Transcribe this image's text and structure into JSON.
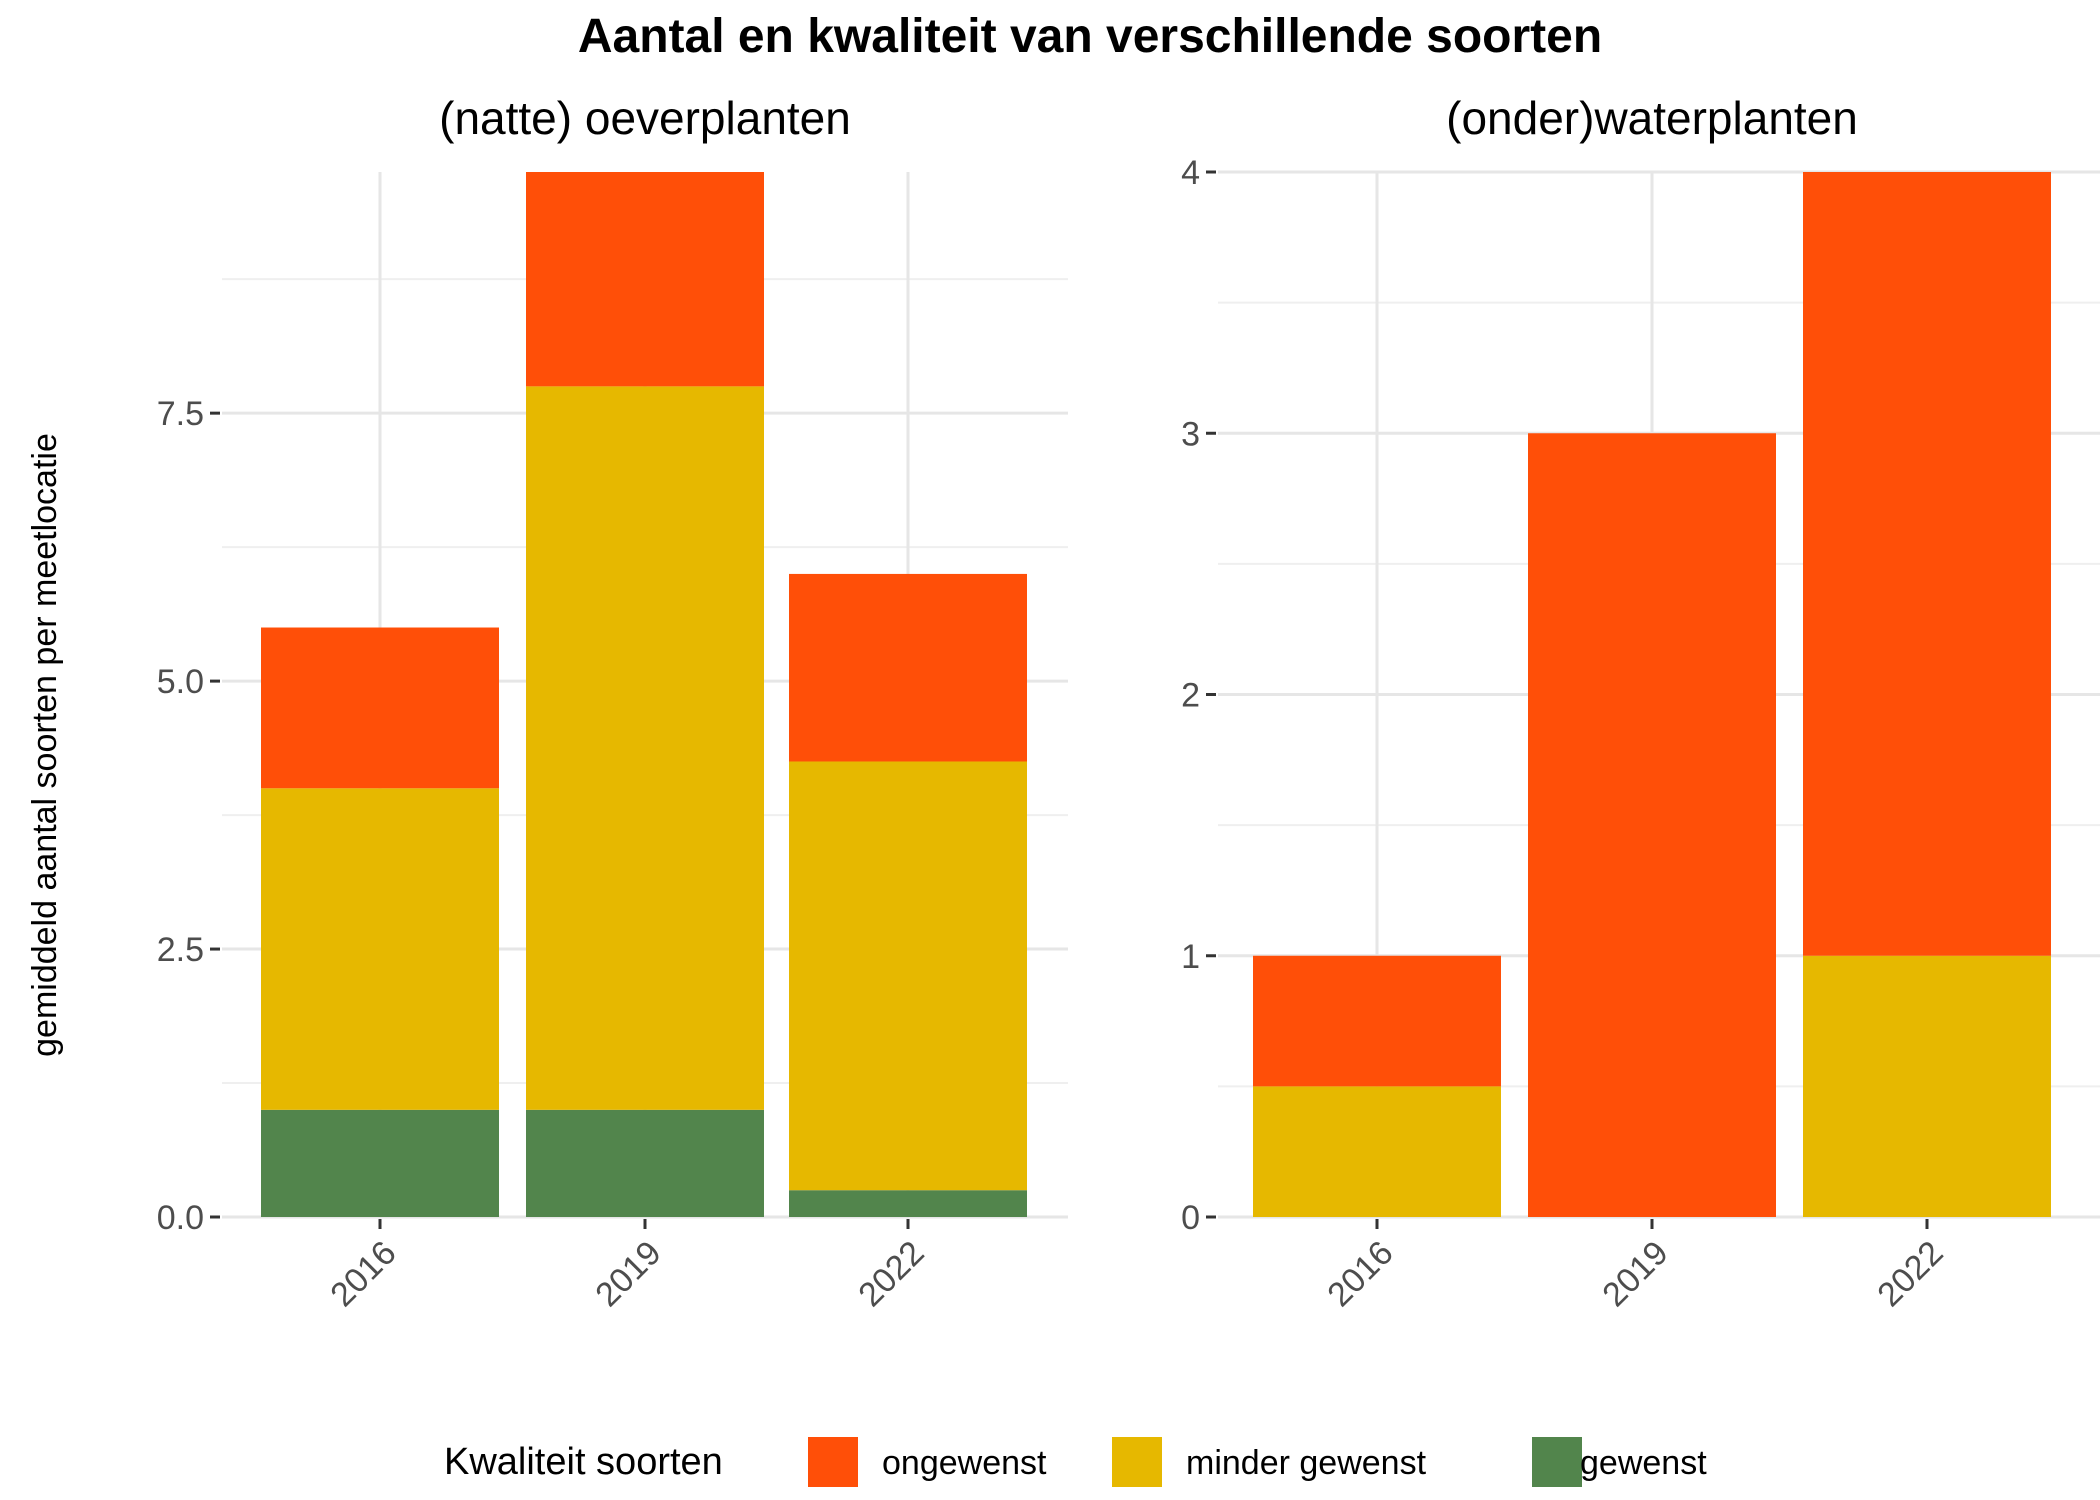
{
  "title": "Aantal en kwaliteit van verschillende soorten",
  "ylabel": "gemiddeld aantal soorten per meetlocatie",
  "legend": {
    "title": "Kwaliteit soorten",
    "placement": "bottom",
    "items": [
      {
        "label": "ongewenst",
        "color": "#FF4F08"
      },
      {
        "label": "minder gewenst",
        "color": "#E6B800"
      },
      {
        "label": "gewenst",
        "color": "#52854C"
      }
    ]
  },
  "chart_data": [
    {
      "type": "bar",
      "stacked": true,
      "subtitle": "(natte) oeverplanten",
      "categories": [
        "2016",
        "2019",
        "2022"
      ],
      "series": [
        {
          "name": "gewenst",
          "color": "#52854C",
          "values": [
            1.0,
            1.0,
            0.25
          ]
        },
        {
          "name": "minder gewenst",
          "color": "#E6B800",
          "values": [
            3.0,
            6.75,
            4.0
          ]
        },
        {
          "name": "ongewenst",
          "color": "#FF4F08",
          "values": [
            1.5,
            2.0,
            1.75
          ]
        }
      ],
      "ylim": [
        0,
        9.75
      ],
      "yticks": [
        0.0,
        2.5,
        5.0,
        7.5
      ],
      "ytick_labels": [
        "0.0",
        "2.5",
        "5.0",
        "7.5"
      ],
      "yminor": [
        1.25,
        3.75,
        6.25,
        8.75
      ],
      "grid": true
    },
    {
      "type": "bar",
      "stacked": true,
      "subtitle": "(onder)waterplanten",
      "categories": [
        "2016",
        "2019",
        "2022"
      ],
      "series": [
        {
          "name": "gewenst",
          "color": "#52854C",
          "values": [
            0,
            0,
            0
          ]
        },
        {
          "name": "minder gewenst",
          "color": "#E6B800",
          "values": [
            0.5,
            0,
            1.0
          ]
        },
        {
          "name": "ongewenst",
          "color": "#FF4F08",
          "values": [
            0.5,
            3.0,
            3.0
          ]
        }
      ],
      "ylim": [
        0,
        4
      ],
      "yticks": [
        0,
        1,
        2,
        3,
        4
      ],
      "ytick_labels": [
        "0",
        "1",
        "2",
        "3",
        "4"
      ],
      "yminor": [
        0.5,
        1.5,
        2.5,
        3.5
      ],
      "grid": true
    }
  ]
}
